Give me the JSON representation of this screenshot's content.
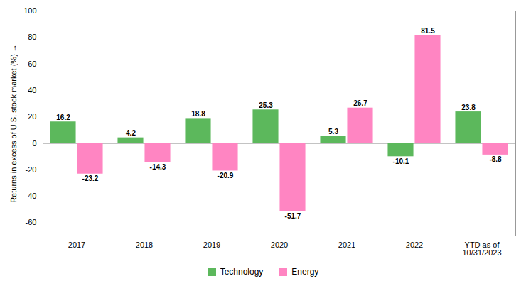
{
  "chart_data": {
    "type": "bar",
    "categories": [
      "2017",
      "2018",
      "2019",
      "2020",
      "2021",
      "2022",
      "YTD as of\n10/31/2023"
    ],
    "series": [
      {
        "name": "Technology",
        "color": "#5cb85c",
        "values": [
          16.2,
          4.2,
          18.8,
          25.3,
          5.3,
          -10.1,
          23.8
        ]
      },
      {
        "name": "Energy",
        "color": "#ff85c2",
        "values": [
          -23.2,
          -14.3,
          -20.9,
          -51.7,
          26.7,
          81.5,
          -8.8
        ]
      }
    ],
    "ylabel": "Returns in excess of U.S. stock market (%)",
    "ylim": [
      -70,
      100
    ],
    "yticks": [
      -60,
      -40,
      -20,
      0,
      20,
      40,
      60,
      80,
      100
    ],
    "grid": false,
    "legend": "bottom",
    "data_labels": true
  }
}
